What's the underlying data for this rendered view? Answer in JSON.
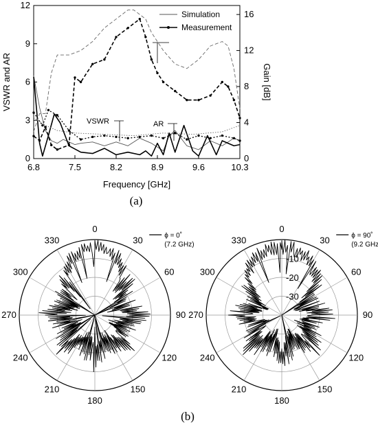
{
  "chart_data": [
    {
      "type": "line",
      "panel_label": "(a)",
      "xlabel": "Frequency [GHz]",
      "ylabel_left": "VSWR and AR",
      "ylabel_right": "Gain [dB]",
      "xlim": [
        6.8,
        10.3
      ],
      "ylim_left": [
        0,
        12
      ],
      "ylim_right": [
        0,
        17
      ],
      "x_ticks": [
        "6.8",
        "7.5",
        "8.2",
        "8.9",
        "9.6",
        "10.3"
      ],
      "y_ticks_left": [
        "0",
        "3",
        "6",
        "9",
        "12"
      ],
      "y_ticks_right": [
        "0",
        "4",
        "8",
        "12",
        "16"
      ],
      "legend": {
        "position": "top-right",
        "entries": [
          "Simulation",
          "Measurement"
        ]
      },
      "annotations": [
        "VSWR",
        "AR"
      ],
      "series": [
        {
          "name": "Simulation",
          "quantity": "VSWR",
          "axis": "left",
          "style": "thin-solid",
          "x": [
            6.8,
            6.9,
            7.0,
            7.1,
            7.2,
            7.3,
            7.4,
            7.5,
            7.6,
            7.8,
            8.0,
            8.2,
            8.4,
            8.6,
            8.8,
            9.0,
            9.1,
            9.2,
            9.4,
            9.6,
            9.8,
            10.0,
            10.2,
            10.3
          ],
          "y": [
            6.5,
            4.0,
            2.2,
            1.4,
            1.2,
            1.5,
            1.3,
            1.1,
            1.2,
            1.3,
            1.0,
            1.3,
            1.0,
            1.6,
            1.2,
            0.6,
            1.8,
            2.2,
            1.0,
            0.7,
            1.4,
            1.0,
            1.6,
            1.4
          ]
        },
        {
          "name": "Measurement",
          "quantity": "VSWR",
          "axis": "left",
          "style": "thick-solid",
          "x": [
            6.8,
            6.9,
            6.95,
            7.05,
            7.15,
            7.25,
            7.4,
            7.6,
            7.8,
            8.0,
            8.2,
            8.4,
            8.6,
            8.7,
            8.8,
            8.9,
            9.0,
            9.1,
            9.2,
            9.35,
            9.5,
            9.6,
            9.75,
            9.9,
            10.0,
            10.2,
            10.3
          ],
          "y": [
            6.4,
            1.2,
            0.2,
            1.8,
            3.5,
            2.8,
            1.0,
            0.5,
            0.4,
            0.8,
            0.3,
            0.5,
            0.3,
            0.6,
            0.2,
            1.2,
            0.3,
            2.0,
            0.5,
            2.6,
            0.6,
            0.2,
            1.8,
            0.3,
            1.4,
            1.0,
            1.1
          ]
        },
        {
          "name": "Simulation",
          "quantity": "AR",
          "axis": "left",
          "style": "thin-dotted",
          "x": [
            6.8,
            7.0,
            7.2,
            7.5,
            8.0,
            8.5,
            9.0,
            9.5,
            10.0,
            10.3
          ],
          "y": [
            3.2,
            2.6,
            2.2,
            2.0,
            1.9,
            1.8,
            2.0,
            1.9,
            2.1,
            2.6
          ]
        },
        {
          "name": "Measurement",
          "quantity": "AR",
          "axis": "left",
          "style": "thick-dotted-markers",
          "x": [
            6.8,
            6.95,
            7.05,
            7.2,
            7.4,
            7.6,
            7.8,
            8.0,
            8.2,
            8.4,
            8.6,
            8.8,
            9.0,
            9.2,
            9.4,
            9.6,
            9.8,
            10.0,
            10.2,
            10.3
          ],
          "y": [
            3.6,
            2.6,
            3.8,
            3.4,
            2.2,
            1.5,
            1.7,
            1.8,
            1.7,
            1.6,
            1.7,
            1.8,
            1.6,
            2.0,
            1.5,
            1.8,
            1.6,
            1.8,
            1.6,
            1.4
          ]
        },
        {
          "name": "Simulation",
          "quantity": "Gain",
          "axis": "right",
          "style": "thin-dashed",
          "x": [
            6.8,
            6.9,
            7.0,
            7.1,
            7.2,
            7.4,
            7.6,
            7.8,
            8.0,
            8.2,
            8.4,
            8.5,
            8.6,
            8.7,
            8.8,
            8.9,
            9.0,
            9.2,
            9.4,
            9.6,
            9.8,
            10.0,
            10.1,
            10.2,
            10.3
          ],
          "y": [
            3.0,
            5.0,
            5.0,
            9.5,
            11.5,
            11.5,
            12.0,
            13.0,
            14.5,
            15.5,
            16.5,
            16.5,
            16.0,
            15.5,
            14.0,
            13.0,
            12.0,
            10.5,
            10.0,
            11.0,
            12.5,
            13.0,
            12.5,
            10.0,
            5.5
          ]
        },
        {
          "name": "Measurement",
          "quantity": "Gain",
          "axis": "right",
          "style": "thick-dashed-markers",
          "x": [
            6.8,
            6.9,
            7.0,
            7.1,
            7.2,
            7.4,
            7.5,
            7.6,
            7.8,
            8.0,
            8.2,
            8.4,
            8.6,
            8.7,
            8.8,
            8.9,
            9.0,
            9.2,
            9.4,
            9.6,
            9.8,
            10.0,
            10.1,
            10.2,
            10.3
          ],
          "y": [
            2.5,
            2.0,
            3.5,
            1.5,
            1.0,
            1.5,
            9.0,
            8.5,
            10.5,
            11.0,
            13.5,
            14.5,
            15.5,
            13.5,
            11.0,
            9.5,
            8.5,
            7.5,
            6.5,
            6.5,
            7.0,
            8.5,
            8.0,
            6.5,
            4.5
          ]
        }
      ]
    },
    {
      "type": "polar",
      "panel_label": "(b)",
      "legend": {
        "entries": [
          "ϕ = 0˚",
          "(7.2 GHz)"
        ]
      },
      "angle_ticks": [
        "0",
        "30",
        "60",
        "90",
        "120",
        "150",
        "180",
        "210",
        "240",
        "270",
        "300",
        "330"
      ],
      "radial_ticks": [],
      "pattern": {
        "min_db": -40,
        "max_db": 0,
        "peak_deg": 0,
        "main_lobe_width_deg": 70,
        "ripple": "high"
      }
    },
    {
      "type": "polar",
      "legend": {
        "entries": [
          "ϕ = 90˚",
          "(9.2 GHz)"
        ]
      },
      "angle_ticks": [
        "0",
        "30",
        "60",
        "90",
        "120",
        "150",
        "180",
        "210",
        "240",
        "270",
        "300",
        "330"
      ],
      "radial_ticks": [
        "-10",
        "-20",
        "-30"
      ],
      "pattern": {
        "min_db": -40,
        "max_db": 0,
        "peak_deg": 0,
        "main_lobe_width_deg": 90,
        "ripple": "high"
      }
    }
  ]
}
